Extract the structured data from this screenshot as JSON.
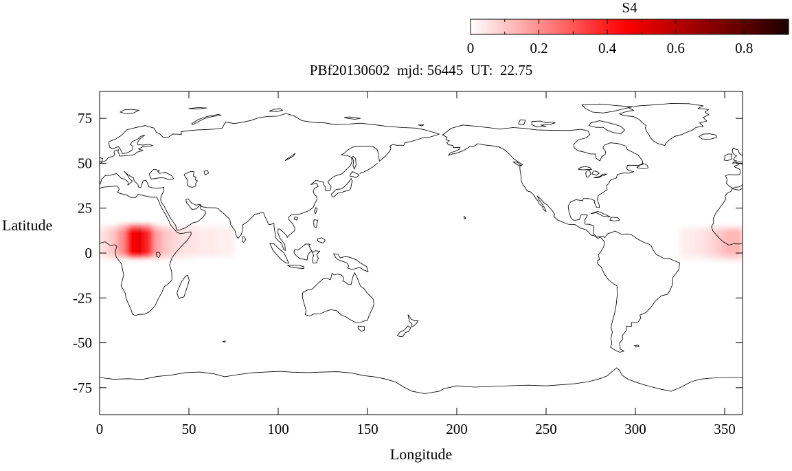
{
  "header": {
    "title": "PBf20130602  mjd: 56445  UT:  22.75"
  },
  "colorbar": {
    "label": "S4",
    "min": 0,
    "max": 0.93,
    "major_ticks": [
      0,
      0.2,
      0.4,
      0.6,
      0.8
    ],
    "major_tick_labels": [
      "0",
      "0.2",
      "0.4",
      "0.6",
      "0.8"
    ],
    "minor_ticks": [
      0.1,
      0.3,
      0.5,
      0.7,
      0.9
    ],
    "colormap": [
      {
        "value": 0.0,
        "color": "#ffffff"
      },
      {
        "value": 0.2,
        "color": "#ff8f8f"
      },
      {
        "value": 0.4,
        "color": "#ff1c1c"
      },
      {
        "value": 0.45,
        "color": "#ff0000"
      },
      {
        "value": 0.6,
        "color": "#b90000"
      },
      {
        "value": 0.8,
        "color": "#5d0000"
      },
      {
        "value": 0.93,
        "color": "#1c0000"
      }
    ]
  },
  "axes": {
    "xlabel": "Longitude",
    "ylabel": "Latitude",
    "xlim": [
      0,
      360
    ],
    "ylim": [
      -90,
      90
    ],
    "xticks": [
      0,
      50,
      100,
      150,
      200,
      250,
      300,
      350
    ],
    "yticks": [
      -75,
      -50,
      -25,
      0,
      25,
      50,
      75
    ]
  },
  "chart_data": {
    "type": "heatmap",
    "title": "PBf20130602  mjd: 56445  UT:  22.75",
    "xlabel": "Longitude",
    "ylabel": "Latitude",
    "xlim": [
      0,
      360
    ],
    "ylim": [
      -90,
      90
    ],
    "xticks": [
      0,
      50,
      100,
      150,
      200,
      250,
      300,
      350
    ],
    "yticks": [
      -75,
      -50,
      -25,
      0,
      25,
      50,
      75
    ],
    "colorbar": {
      "label": "S4",
      "ticks": [
        0,
        0.2,
        0.4,
        0.6,
        0.8
      ],
      "range": [
        0,
        0.93
      ]
    },
    "basemap": "world-coastlines-equirectangular-0-360",
    "band": {
      "lat_halfwidth": 10
    },
    "cells": [
      {
        "lon": 2.5,
        "lat": 6,
        "s4": 0.06
      },
      {
        "lon": 7.5,
        "lat": 6,
        "s4": 0.1
      },
      {
        "lon": 12.5,
        "lat": 7,
        "s4": 0.2
      },
      {
        "lon": 17.5,
        "lat": 7,
        "s4": 0.45
      },
      {
        "lon": 22.5,
        "lat": 7,
        "s4": 0.5
      },
      {
        "lon": 27.5,
        "lat": 7,
        "s4": 0.38
      },
      {
        "lon": 32.5,
        "lat": 6,
        "s4": 0.16
      },
      {
        "lon": 37.5,
        "lat": 6,
        "s4": 0.1
      },
      {
        "lon": 42.5,
        "lat": 6,
        "s4": 0.07
      },
      {
        "lon": 47.5,
        "lat": 6,
        "s4": 0.05
      },
      {
        "lon": 52.5,
        "lat": 7,
        "s4": 0.05
      },
      {
        "lon": 57.5,
        "lat": 7,
        "s4": 0.04
      },
      {
        "lon": 62.5,
        "lat": 7,
        "s4": 0.04
      },
      {
        "lon": 67.5,
        "lat": 7,
        "s4": 0.03
      },
      {
        "lon": 72.5,
        "lat": 7,
        "s4": 0.03
      },
      {
        "lon": 327.5,
        "lat": 5,
        "s4": 0.03
      },
      {
        "lon": 332.5,
        "lat": 5,
        "s4": 0.04
      },
      {
        "lon": 337.5,
        "lat": 5,
        "s4": 0.05
      },
      {
        "lon": 342.5,
        "lat": 5,
        "s4": 0.07
      },
      {
        "lon": 347.5,
        "lat": 5,
        "s4": 0.1
      },
      {
        "lon": 352.5,
        "lat": 5,
        "s4": 0.13
      },
      {
        "lon": 357.5,
        "lat": 5,
        "s4": 0.13
      }
    ]
  }
}
